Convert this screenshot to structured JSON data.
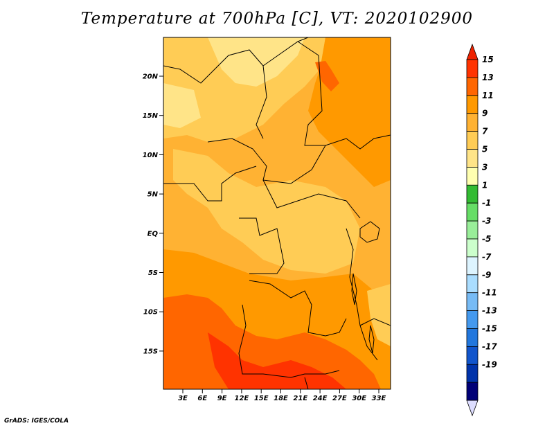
{
  "title": "Temperature at 700hPa [C], VT: 2020102900",
  "credit": "GrADS: IGES/COLA",
  "map": {
    "lat_labels": [
      "20N",
      "15N",
      "10N",
      "5N",
      "EQ",
      "5S",
      "10S",
      "15S"
    ],
    "lon_labels": [
      "3E",
      "6E",
      "9E",
      "12E",
      "15E",
      "18E",
      "21E",
      "24E",
      "27E",
      "30E",
      "33E"
    ]
  },
  "colorbar": {
    "labels": [
      "15",
      "13",
      "11",
      "9",
      "7",
      "5",
      "3",
      "1",
      "-1",
      "-3",
      "-5",
      "-7",
      "-9",
      "-11",
      "-13",
      "-15",
      "-17",
      "-19"
    ],
    "colors": [
      "#ff3300",
      "#ff6600",
      "#ff9900",
      "#ffb233",
      "#ffcc55",
      "#ffe488",
      "#ffffb0",
      "#33bb33",
      "#66dd66",
      "#99ee99",
      "#ccffcc",
      "#ddf4ff",
      "#aaddff",
      "#77bbf5",
      "#4499ee",
      "#2277dd",
      "#1155cc",
      "#0033aa",
      "#000077"
    ],
    "overflow_top_color": "#ee2200",
    "underflow_bottom_color": "#ddddff"
  },
  "fill_colors": {
    "c5_7": "#ffe488",
    "c7_9": "#ffcc55",
    "c9_11": "#ffb233",
    "c11_13": "#ff9900",
    "c13_15": "#ff6600",
    "c15_plus": "#ff3300"
  }
}
